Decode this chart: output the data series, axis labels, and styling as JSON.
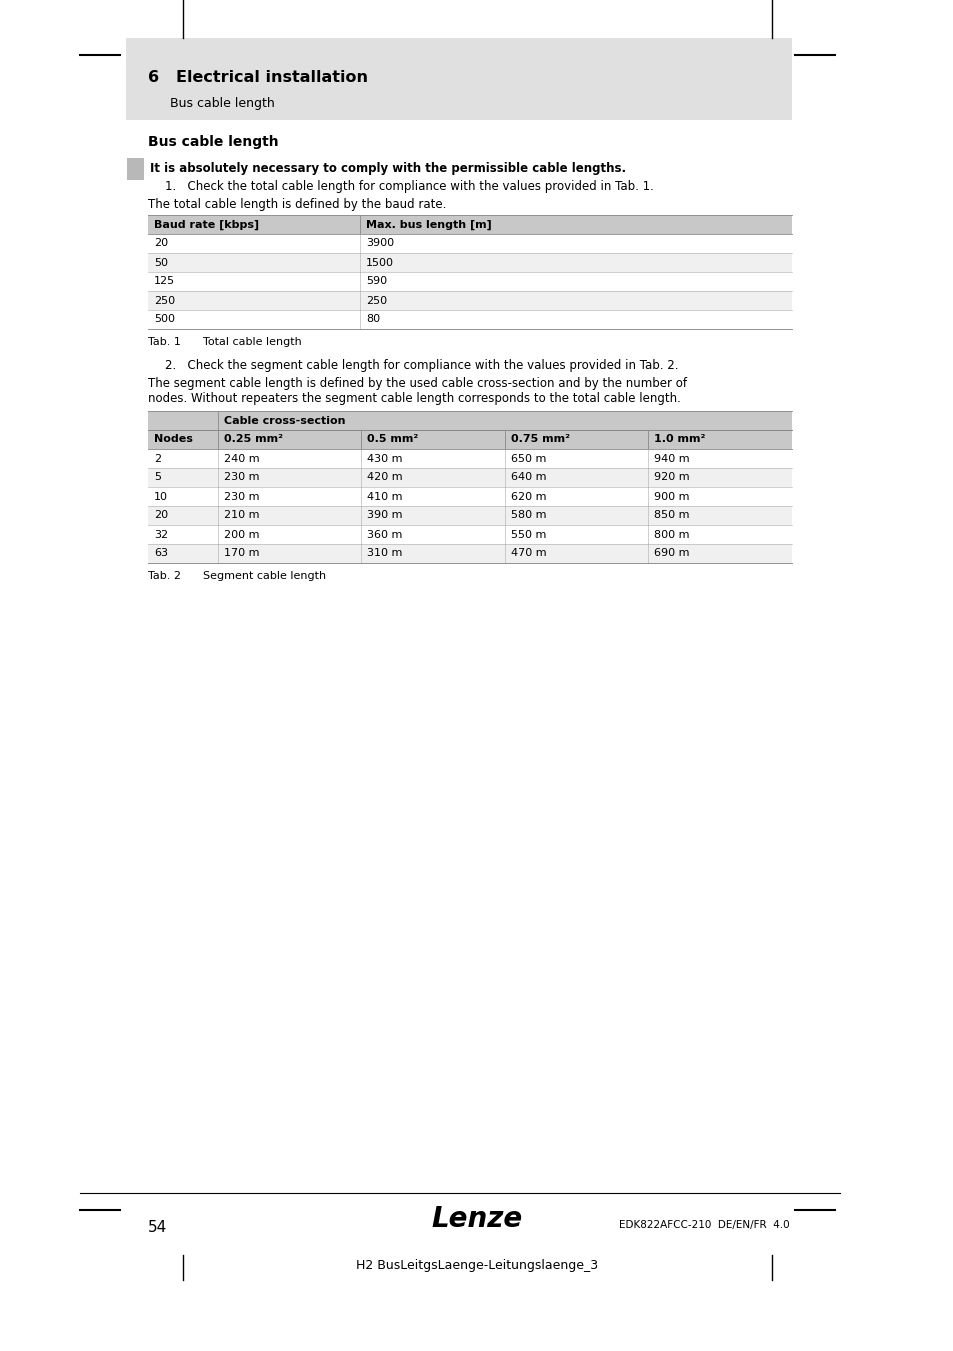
{
  "bg_color": "#ffffff",
  "header_bg": "#e0e0e0",
  "header_text_bold": "6   Electrical installation",
  "header_subtext": "Bus cable length",
  "section_title": "Bus cable length",
  "warning_bold": "It is absolutely necessary to comply with the permissible cable lengths.",
  "step1_text": "1.   Check the total cable length for compliance with the values provided in Tab. 1.",
  "para1_text": "The total cable length is defined by the baud rate.",
  "table1_header": [
    "Baud rate [kbps]",
    "Max. bus length [m]"
  ],
  "table1_rows": [
    [
      "20",
      "3900"
    ],
    [
      "50",
      "1500"
    ],
    [
      "125",
      "590"
    ],
    [
      "250",
      "250"
    ],
    [
      "500",
      "80"
    ]
  ],
  "table1_caption_left": "Tab. 1",
  "table1_caption_right": "Total cable length",
  "step2_text": "2.   Check the segment cable length for compliance with the values provided in Tab. 2.",
  "para2_line1": "The segment cable length is defined by the used cable cross-section and by the number of",
  "para2_line2": "nodes. Without repeaters the segment cable length corresponds to the total cable length.",
  "table2_group_header": "Cable cross-section",
  "table2_header": [
    "Nodes",
    "0.25 mm²",
    "0.5 mm²",
    "0.75 mm²",
    "1.0 mm²"
  ],
  "table2_rows": [
    [
      "2",
      "240 m",
      "430 m",
      "650 m",
      "940 m"
    ],
    [
      "5",
      "230 m",
      "420 m",
      "640 m",
      "920 m"
    ],
    [
      "10",
      "230 m",
      "410 m",
      "620 m",
      "900 m"
    ],
    [
      "20",
      "210 m",
      "390 m",
      "580 m",
      "850 m"
    ],
    [
      "32",
      "200 m",
      "360 m",
      "550 m",
      "800 m"
    ],
    [
      "63",
      "170 m",
      "310 m",
      "470 m",
      "690 m"
    ]
  ],
  "table2_caption_left": "Tab. 2",
  "table2_caption_right": "Segment cable length",
  "footer_page": "54",
  "footer_brand": "Lenze",
  "footer_doc": "EDK822AFCC-210  DE/EN/FR  4.0",
  "footer_label": "H2 BusLeitgsLaenge-Leitungslaenge_3",
  "table_header_bg": "#c8c8c8",
  "table_alt_bg": "#f0f0f0",
  "table_row_bg": "#ffffff",
  "note_box_color": "#b8b8b8"
}
